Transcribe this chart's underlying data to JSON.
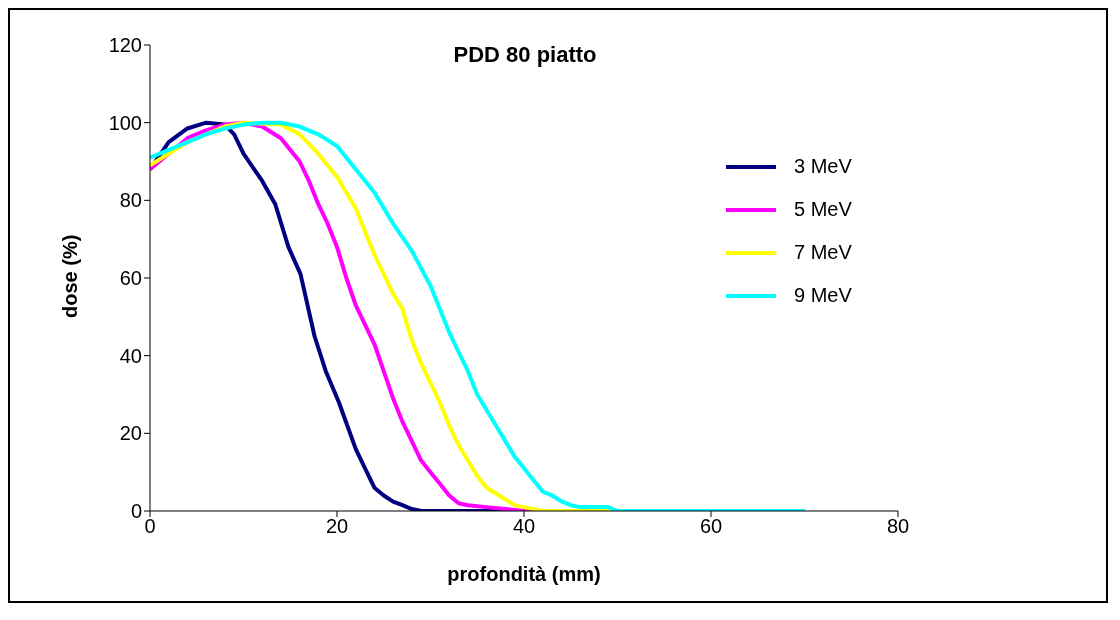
{
  "chart_data": {
    "type": "line",
    "title": "PDD 80 piatto",
    "xlabel": "profondità (mm)",
    "ylabel": "dose (%)",
    "xlim": [
      0,
      80
    ],
    "xticks": [
      0,
      20,
      40,
      60,
      80
    ],
    "ylim": [
      0,
      120
    ],
    "yticks": [
      0,
      20,
      40,
      60,
      80,
      100,
      120
    ],
    "grid": false,
    "legend": "top right",
    "marker": "none",
    "line_style": "solid",
    "series": [
      {
        "name": "3 MeV",
        "color": "#000080",
        "x": [
          0,
          2,
          4,
          6,
          8,
          9,
          10,
          12,
          13.4,
          14.8,
          16.1,
          17.6,
          18.8,
          20.2,
          22,
          23,
          24,
          25,
          26,
          27,
          28,
          29,
          70
        ],
        "values": [
          88,
          95,
          98.5,
          100,
          99.5,
          97,
          92,
          85,
          79,
          68,
          61,
          45,
          36,
          28,
          16,
          11,
          6,
          4,
          2.4,
          1.5,
          0.5,
          0,
          0
        ]
      },
      {
        "name": "5 MeV",
        "color": "#ff00ff",
        "x": [
          0,
          2,
          4,
          6,
          8,
          10,
          12,
          14,
          16,
          17,
          18,
          19,
          20,
          21,
          22,
          23,
          24,
          25,
          26,
          27,
          28,
          29,
          30,
          31,
          32,
          33,
          34,
          36,
          38,
          40,
          70
        ],
        "values": [
          88,
          92,
          96,
          98,
          99.5,
          100,
          99,
          96,
          90,
          85,
          79,
          74,
          68,
          60,
          53,
          48,
          43,
          36,
          29,
          23,
          18,
          13,
          10,
          7,
          4,
          2,
          1.5,
          1,
          0.5,
          0,
          0
        ]
      },
      {
        "name": "7 MeV",
        "color": "#ffff00",
        "x": [
          0,
          2,
          4,
          6,
          8,
          10,
          14,
          16,
          18,
          20,
          22,
          23,
          24,
          25,
          26,
          27,
          28,
          29,
          30,
          31,
          32,
          33,
          34,
          35,
          36,
          37,
          38,
          39,
          40,
          42,
          70
        ],
        "values": [
          89,
          92,
          95,
          97,
          99,
          100,
          99.5,
          97,
          92,
          86,
          78,
          72,
          66,
          61,
          56,
          52,
          44,
          38,
          33,
          28,
          22,
          17,
          13,
          9,
          6,
          4.5,
          3,
          1.5,
          1,
          0,
          0
        ]
      },
      {
        "name": "9 MeV",
        "color": "#00ffff",
        "x": [
          0,
          2,
          4,
          6,
          8,
          10,
          12,
          14,
          16,
          18,
          20,
          22,
          24,
          26,
          28,
          30,
          31,
          32,
          33,
          34,
          35,
          36,
          37,
          38,
          39,
          40,
          41,
          42,
          43,
          44,
          45,
          46,
          49,
          50,
          70
        ],
        "values": [
          91,
          93,
          95,
          97,
          98.5,
          99.5,
          100,
          100,
          99,
          97,
          94,
          88,
          82,
          74,
          67,
          58,
          52,
          46,
          41,
          36,
          30,
          26,
          22,
          18,
          14,
          11,
          8,
          5,
          4,
          2.5,
          1.5,
          1,
          1,
          0,
          0
        ]
      }
    ]
  }
}
